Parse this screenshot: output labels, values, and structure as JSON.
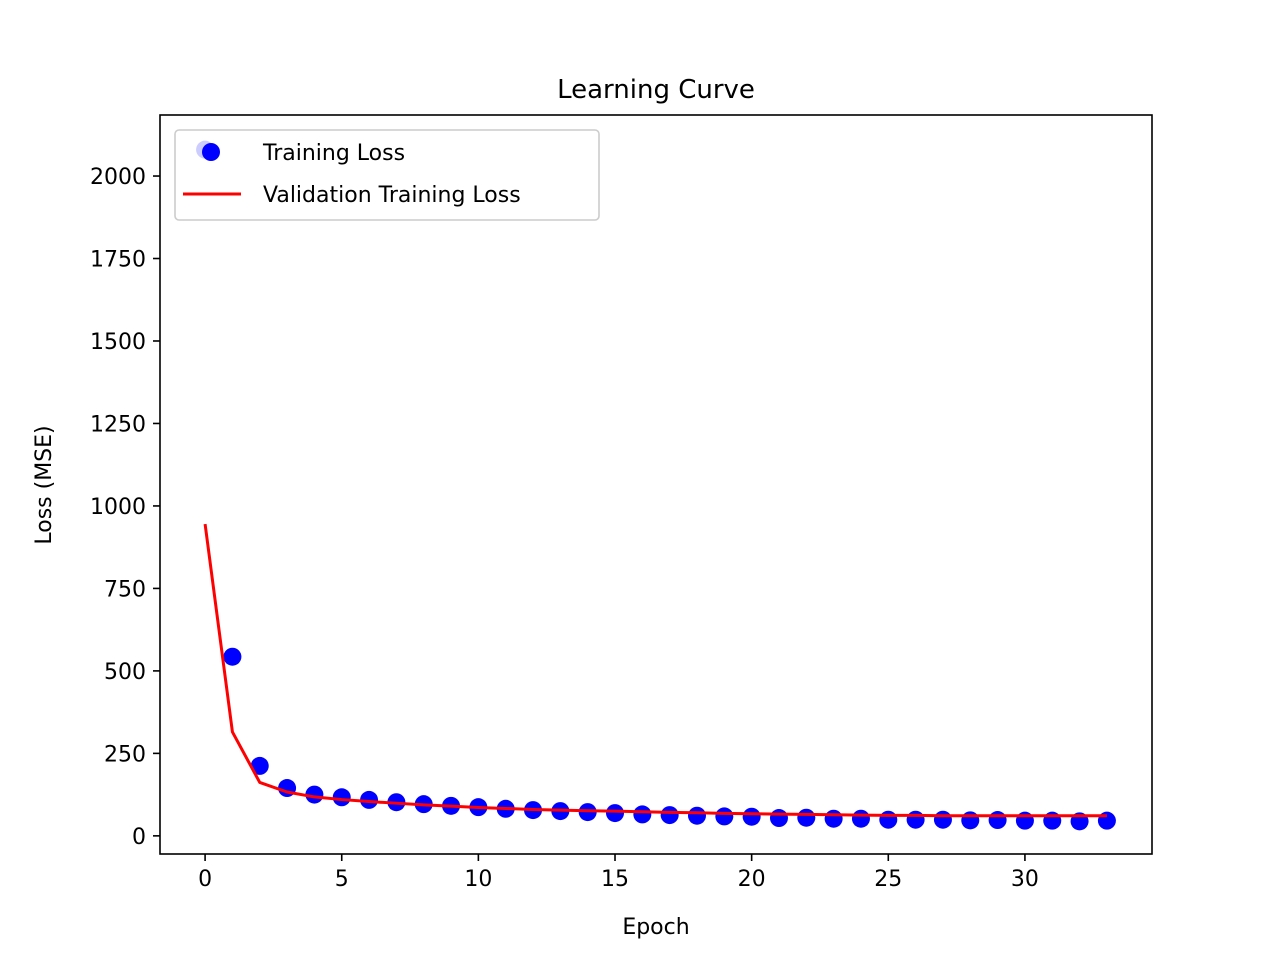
{
  "chart_data": {
    "type": "line",
    "title": "Learning Curve",
    "xlabel": "Epoch",
    "ylabel": "Loss (MSE)",
    "xlim": [
      -1.65,
      34.65
    ],
    "ylim": [
      -55,
      2185
    ],
    "xticks": [
      0,
      5,
      10,
      15,
      20,
      25,
      30
    ],
    "yticks": [
      0,
      250,
      500,
      750,
      1000,
      1250,
      1500,
      1750,
      2000
    ],
    "grid": false,
    "legend_position": "top-left",
    "series": [
      {
        "name": "Training Loss",
        "style": "markers",
        "color": "#0000ff",
        "x": [
          0,
          1,
          2,
          3,
          4,
          5,
          6,
          7,
          8,
          9,
          10,
          11,
          12,
          13,
          14,
          15,
          16,
          17,
          18,
          19,
          20,
          21,
          22,
          23,
          24,
          25,
          26,
          27,
          28,
          29,
          30,
          31,
          32,
          33
        ],
        "values": [
          2080,
          543,
          212,
          145,
          125,
          117,
          109,
          102,
          96,
          91,
          87,
          82,
          78,
          75,
          72,
          69,
          65,
          63,
          61,
          59,
          58,
          54,
          55,
          52,
          52,
          49,
          49,
          49,
          47,
          48,
          46,
          46,
          44,
          46
        ]
      },
      {
        "name": "Validation Training Loss",
        "style": "line",
        "color": "#ff0000",
        "x": [
          0,
          1,
          2,
          3,
          4,
          5,
          6,
          7,
          8,
          9,
          10,
          11,
          12,
          13,
          14,
          15,
          16,
          17,
          18,
          19,
          20,
          21,
          22,
          23,
          24,
          25,
          26,
          27,
          28,
          29,
          30,
          31,
          32,
          33
        ],
        "values": [
          945,
          315,
          162,
          133,
          118,
          110,
          104,
          99,
          94,
          90,
          86,
          83,
          80,
          78,
          76,
          75,
          73,
          71,
          70,
          68,
          67,
          66,
          65,
          64,
          63,
          62,
          62,
          61,
          61,
          61,
          61,
          61,
          61,
          61
        ]
      }
    ]
  }
}
